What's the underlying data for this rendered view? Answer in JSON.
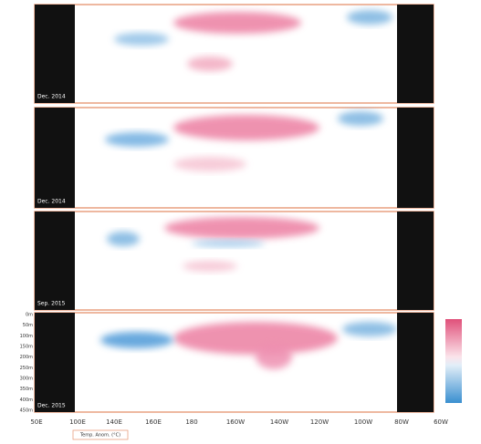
{
  "panels": [
    {
      "label": "Dec. 2014"
    },
    {
      "label": "Dec. 2014"
    },
    {
      "label": "Sep. 2015"
    },
    {
      "label": "Dec. 2015"
    }
  ],
  "x_axis": {
    "ticks": [
      "50E",
      "100E",
      "140E",
      "160E",
      "180",
      "160W",
      "140W",
      "120W",
      "100W",
      "80W",
      "60W"
    ]
  },
  "y_axis": {
    "ticks": [
      "0m",
      "50m",
      "100m",
      "150m",
      "200m",
      "250m",
      "300m",
      "350m",
      "400m",
      "450m"
    ]
  },
  "legend": {
    "label": "Temp. Anom. (°C)"
  }
}
